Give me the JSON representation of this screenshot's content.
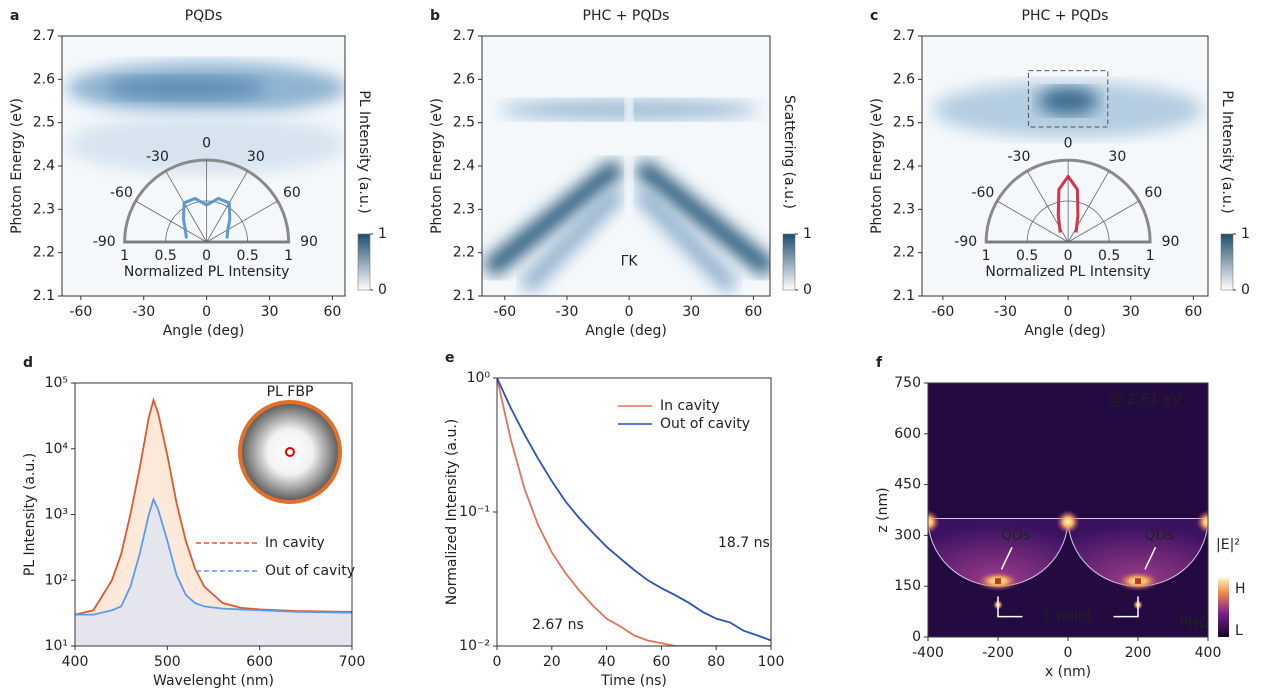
{
  "chart_data": [
    {
      "type": "heatmap",
      "panel_label": "a",
      "title": "PQDs",
      "xlabel": "Angle (deg)",
      "ylabel": "Photon Energy (eV)",
      "xlim": [
        -69,
        66
      ],
      "xticks": [
        -60,
        -30,
        0,
        30,
        60
      ],
      "ylim": [
        2.1,
        2.7
      ],
      "yticks": [
        2.1,
        2.2,
        2.3,
        2.4,
        2.5,
        2.6,
        2.7
      ],
      "colorbar": {
        "label": "PL Intensity (a.u.)",
        "lim": [
          0,
          1
        ],
        "ticks": [
          0,
          1
        ]
      },
      "inset": {
        "type": "polar",
        "thetaticks": [
          -90,
          -60,
          -30,
          0,
          30,
          60,
          90
        ],
        "rticks": [
          1,
          0.5,
          0,
          0.5,
          1
        ],
        "label": "Normalized PL Intensity",
        "color": "#5b9bd5",
        "theta": [
          -80,
          -60,
          -45,
          -30,
          -15,
          0,
          15,
          30,
          45,
          60,
          80
        ],
        "r": [
          0.25,
          0.3,
          0.4,
          0.55,
          0.55,
          0.45,
          0.55,
          0.55,
          0.4,
          0.3,
          0.25
        ]
      }
    },
    {
      "type": "heatmap",
      "panel_label": "b",
      "title": "PHC + PQDs",
      "xlabel": "Angle (deg)",
      "ylabel": "Photon Energy (eV)",
      "xlim": [
        -71,
        68
      ],
      "xticks": [
        -60,
        -30,
        0,
        30,
        60
      ],
      "ylim": [
        2.1,
        2.7
      ],
      "yticks": [
        2.1,
        2.2,
        2.3,
        2.4,
        2.5,
        2.6,
        2.7
      ],
      "colorbar": {
        "label": "Scattering (a.u.)",
        "lim": [
          0,
          1
        ],
        "ticks": [
          0,
          1
        ]
      },
      "annotation": "ΓK"
    },
    {
      "type": "heatmap",
      "panel_label": "c",
      "title": "PHC + PQDs",
      "xlabel": "Angle (deg)",
      "ylabel": "Photon Energy (eV)",
      "xlim": [
        -70,
        67
      ],
      "xticks": [
        -60,
        -30,
        0,
        30,
        60
      ],
      "ylim": [
        2.1,
        2.7
      ],
      "yticks": [
        2.1,
        2.2,
        2.3,
        2.4,
        2.5,
        2.6,
        2.7
      ],
      "colorbar": {
        "label": "PL Intensity (a.u.)",
        "lim": [
          0,
          1
        ],
        "ticks": [
          0,
          1
        ]
      },
      "inset": {
        "type": "polar",
        "thetaticks": [
          -90,
          -60,
          -30,
          0,
          30,
          60,
          90
        ],
        "rticks": [
          1,
          0.5,
          0,
          0.5,
          1
        ],
        "label": "Normalized PL Intensity",
        "color": "#d6334a",
        "theta": [
          -40,
          -20,
          -10,
          0,
          10,
          20,
          40
        ],
        "r": [
          0.15,
          0.35,
          0.65,
          0.8,
          0.65,
          0.35,
          0.15
        ]
      }
    },
    {
      "type": "line",
      "panel_label": "d",
      "xlabel": "Wavelenght (nm)",
      "ylabel": "PL Intensity (a.u.)",
      "inset_title": "PL FBP",
      "xlim": [
        400,
        700
      ],
      "xticks": [
        400,
        500,
        600,
        700
      ],
      "ylim": [
        10,
        100000
      ],
      "log_y": true,
      "yticks": [
        {
          "value": 10,
          "label": "10¹"
        },
        {
          "value": 100,
          "label": "10²"
        },
        {
          "value": 1000,
          "label": "10³"
        },
        {
          "value": 10000,
          "label": "10⁴"
        },
        {
          "value": 100000,
          "label": "10⁵"
        }
      ],
      "x": [
        400,
        420,
        440,
        450,
        460,
        470,
        480,
        485,
        490,
        500,
        510,
        520,
        530,
        540,
        560,
        580,
        600,
        640,
        700
      ],
      "series": [
        {
          "name": "In cavity",
          "color": "#e0572a",
          "fill": "#fbe3cf",
          "values": [
            30,
            35,
            100,
            250,
            1000,
            5000,
            30000,
            55000,
            35000,
            8000,
            1500,
            400,
            150,
            80,
            45,
            38,
            36,
            34,
            33
          ]
        },
        {
          "name": "Out of cavity",
          "color": "#5b9bef",
          "fill": "#dfe3f3",
          "values": [
            30,
            30,
            35,
            40,
            80,
            250,
            1000,
            1700,
            1200,
            400,
            120,
            60,
            45,
            40,
            37,
            36,
            35,
            33,
            32
          ]
        }
      ]
    },
    {
      "type": "line",
      "panel_label": "e",
      "xlabel": "Time (ns)",
      "ylabel": "Normalized Intensity (a.u.)",
      "xlim": [
        0,
        100
      ],
      "xticks": [
        0,
        20,
        40,
        60,
        80,
        100
      ],
      "ylim": [
        0.01,
        1
      ],
      "log_y": true,
      "yticks": [
        {
          "value": 0.01,
          "label": "10⁻²"
        },
        {
          "value": 0.1,
          "label": "10⁻¹"
        },
        {
          "value": 1,
          "label": "10⁰"
        }
      ],
      "x": [
        0,
        5,
        10,
        15,
        20,
        25,
        30,
        35,
        40,
        45,
        50,
        55,
        60,
        65,
        70,
        75,
        80,
        85,
        90,
        95,
        100
      ],
      "series": [
        {
          "name": "In cavity",
          "color": "#e8705a",
          "values": [
            1,
            0.35,
            0.15,
            0.08,
            0.05,
            0.035,
            0.026,
            0.02,
            0.016,
            0.014,
            0.012,
            0.011,
            0.0105,
            0.01,
            0.01,
            0.01,
            0.01,
            0.01,
            0.01,
            0.01,
            0.01
          ]
        },
        {
          "name": "Out of cavity",
          "color": "#2a52be",
          "values": [
            1,
            0.6,
            0.38,
            0.25,
            0.17,
            0.12,
            0.09,
            0.07,
            0.055,
            0.045,
            0.037,
            0.031,
            0.027,
            0.024,
            0.021,
            0.018,
            0.016,
            0.015,
            0.013,
            0.012,
            0.011
          ]
        }
      ],
      "annotations": [
        "2.67 ns",
        "18.7 ns"
      ]
    },
    {
      "type": "field",
      "panel_label": "f",
      "xlabel": "x (nm)",
      "ylabel": "z (nm)",
      "xlim": [
        -400,
        400
      ],
      "xticks": [
        -400,
        -200,
        0,
        200,
        400
      ],
      "ylim": [
        0,
        750
      ],
      "yticks": [
        0,
        150,
        300,
        450,
        600,
        750
      ],
      "colorbar": {
        "label": "|E|²",
        "labels": [
          "H",
          "L"
        ]
      },
      "annotations": [
        "@ 2.61 eV",
        "QDs",
        "QDs",
        "Γ point",
        "PHC"
      ]
    }
  ]
}
